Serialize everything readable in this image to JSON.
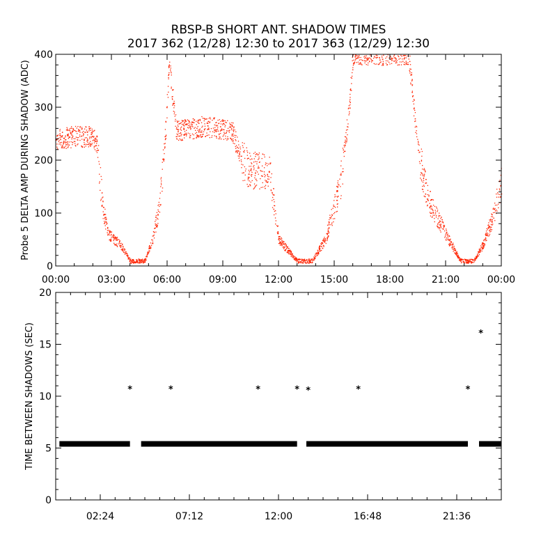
{
  "title_line1": "RBSP-B SHORT ANT. SHADOW TIMES",
  "title_line2": "2017 362 (12/28) 12:30 to 2017 363 (12/29) 12:30",
  "colors": {
    "points_top": "#ff2200",
    "points_bottom": "#000000",
    "axes": "#000000"
  },
  "chart_data": [
    {
      "type": "scatter",
      "ylabel": "Probe 5 DELTA AMP DURING SHADOW (ADC)",
      "ylim": [
        0,
        400
      ],
      "xlim_hours": [
        0,
        24
      ],
      "yticks": [
        0,
        100,
        200,
        300,
        400
      ],
      "xticks": [
        {
          "h": 0,
          "label": "00:00"
        },
        {
          "h": 3,
          "label": "03:00"
        },
        {
          "h": 6,
          "label": "06:00"
        },
        {
          "h": 9,
          "label": "09:00"
        },
        {
          "h": 12,
          "label": "12:00"
        },
        {
          "h": 15,
          "label": "15:00"
        },
        {
          "h": 18,
          "label": "18:00"
        },
        {
          "h": 21,
          "label": "21:00"
        },
        {
          "h": 24,
          "label": "00:00"
        }
      ],
      "envelope_hours_vs_adc": [
        [
          0.0,
          240
        ],
        [
          1.0,
          245
        ],
        [
          2.0,
          245
        ],
        [
          2.2,
          230
        ],
        [
          2.5,
          120
        ],
        [
          2.8,
          60
        ],
        [
          3.5,
          40
        ],
        [
          4.0,
          10
        ],
        [
          4.8,
          10
        ],
        [
          5.2,
          50
        ],
        [
          5.6,
          120
        ],
        [
          5.9,
          250
        ],
        [
          6.1,
          380
        ],
        [
          6.5,
          255
        ],
        [
          8.0,
          265
        ],
        [
          9.5,
          255
        ],
        [
          10.0,
          200
        ],
        [
          10.5,
          180
        ],
        [
          11.5,
          180
        ],
        [
          12.0,
          50
        ],
        [
          13.0,
          10
        ],
        [
          13.8,
          10
        ],
        [
          14.5,
          50
        ],
        [
          15.3,
          150
        ],
        [
          15.8,
          300
        ],
        [
          16.0,
          400
        ],
        [
          19.0,
          400
        ],
        [
          19.5,
          220
        ],
        [
          20.0,
          130
        ],
        [
          21.0,
          60
        ],
        [
          21.8,
          10
        ],
        [
          22.5,
          10
        ],
        [
          23.0,
          40
        ],
        [
          23.5,
          90
        ],
        [
          24.0,
          160
        ]
      ]
    },
    {
      "type": "scatter",
      "ylabel": "TIME BETWEEN SHADOWS (SEC)",
      "ylim": [
        0,
        20
      ],
      "xlim_hours": [
        0,
        24
      ],
      "yticks": [
        0,
        5,
        10,
        15,
        20
      ],
      "xticks": [
        {
          "h": 2.4,
          "label": "02:24"
        },
        {
          "h": 7.2,
          "label": "07:12"
        },
        {
          "h": 12.0,
          "label": "12:00"
        },
        {
          "h": 16.8,
          "label": "16:48"
        },
        {
          "h": 21.6,
          "label": "21:36"
        }
      ],
      "baseline_sec": 5.4,
      "baseline_segments_hours": [
        [
          0.2,
          4.0
        ],
        [
          4.6,
          13.0
        ],
        [
          13.5,
          22.2
        ],
        [
          22.8,
          24.0
        ]
      ],
      "outliers": [
        {
          "x": 4.0,
          "y": 10.7
        },
        {
          "x": 6.2,
          "y": 10.7
        },
        {
          "x": 10.9,
          "y": 10.7
        },
        {
          "x": 13.0,
          "y": 10.7
        },
        {
          "x": 13.6,
          "y": 10.6
        },
        {
          "x": 16.3,
          "y": 10.7
        },
        {
          "x": 22.2,
          "y": 10.7
        },
        {
          "x": 22.9,
          "y": 16.1
        }
      ]
    }
  ]
}
